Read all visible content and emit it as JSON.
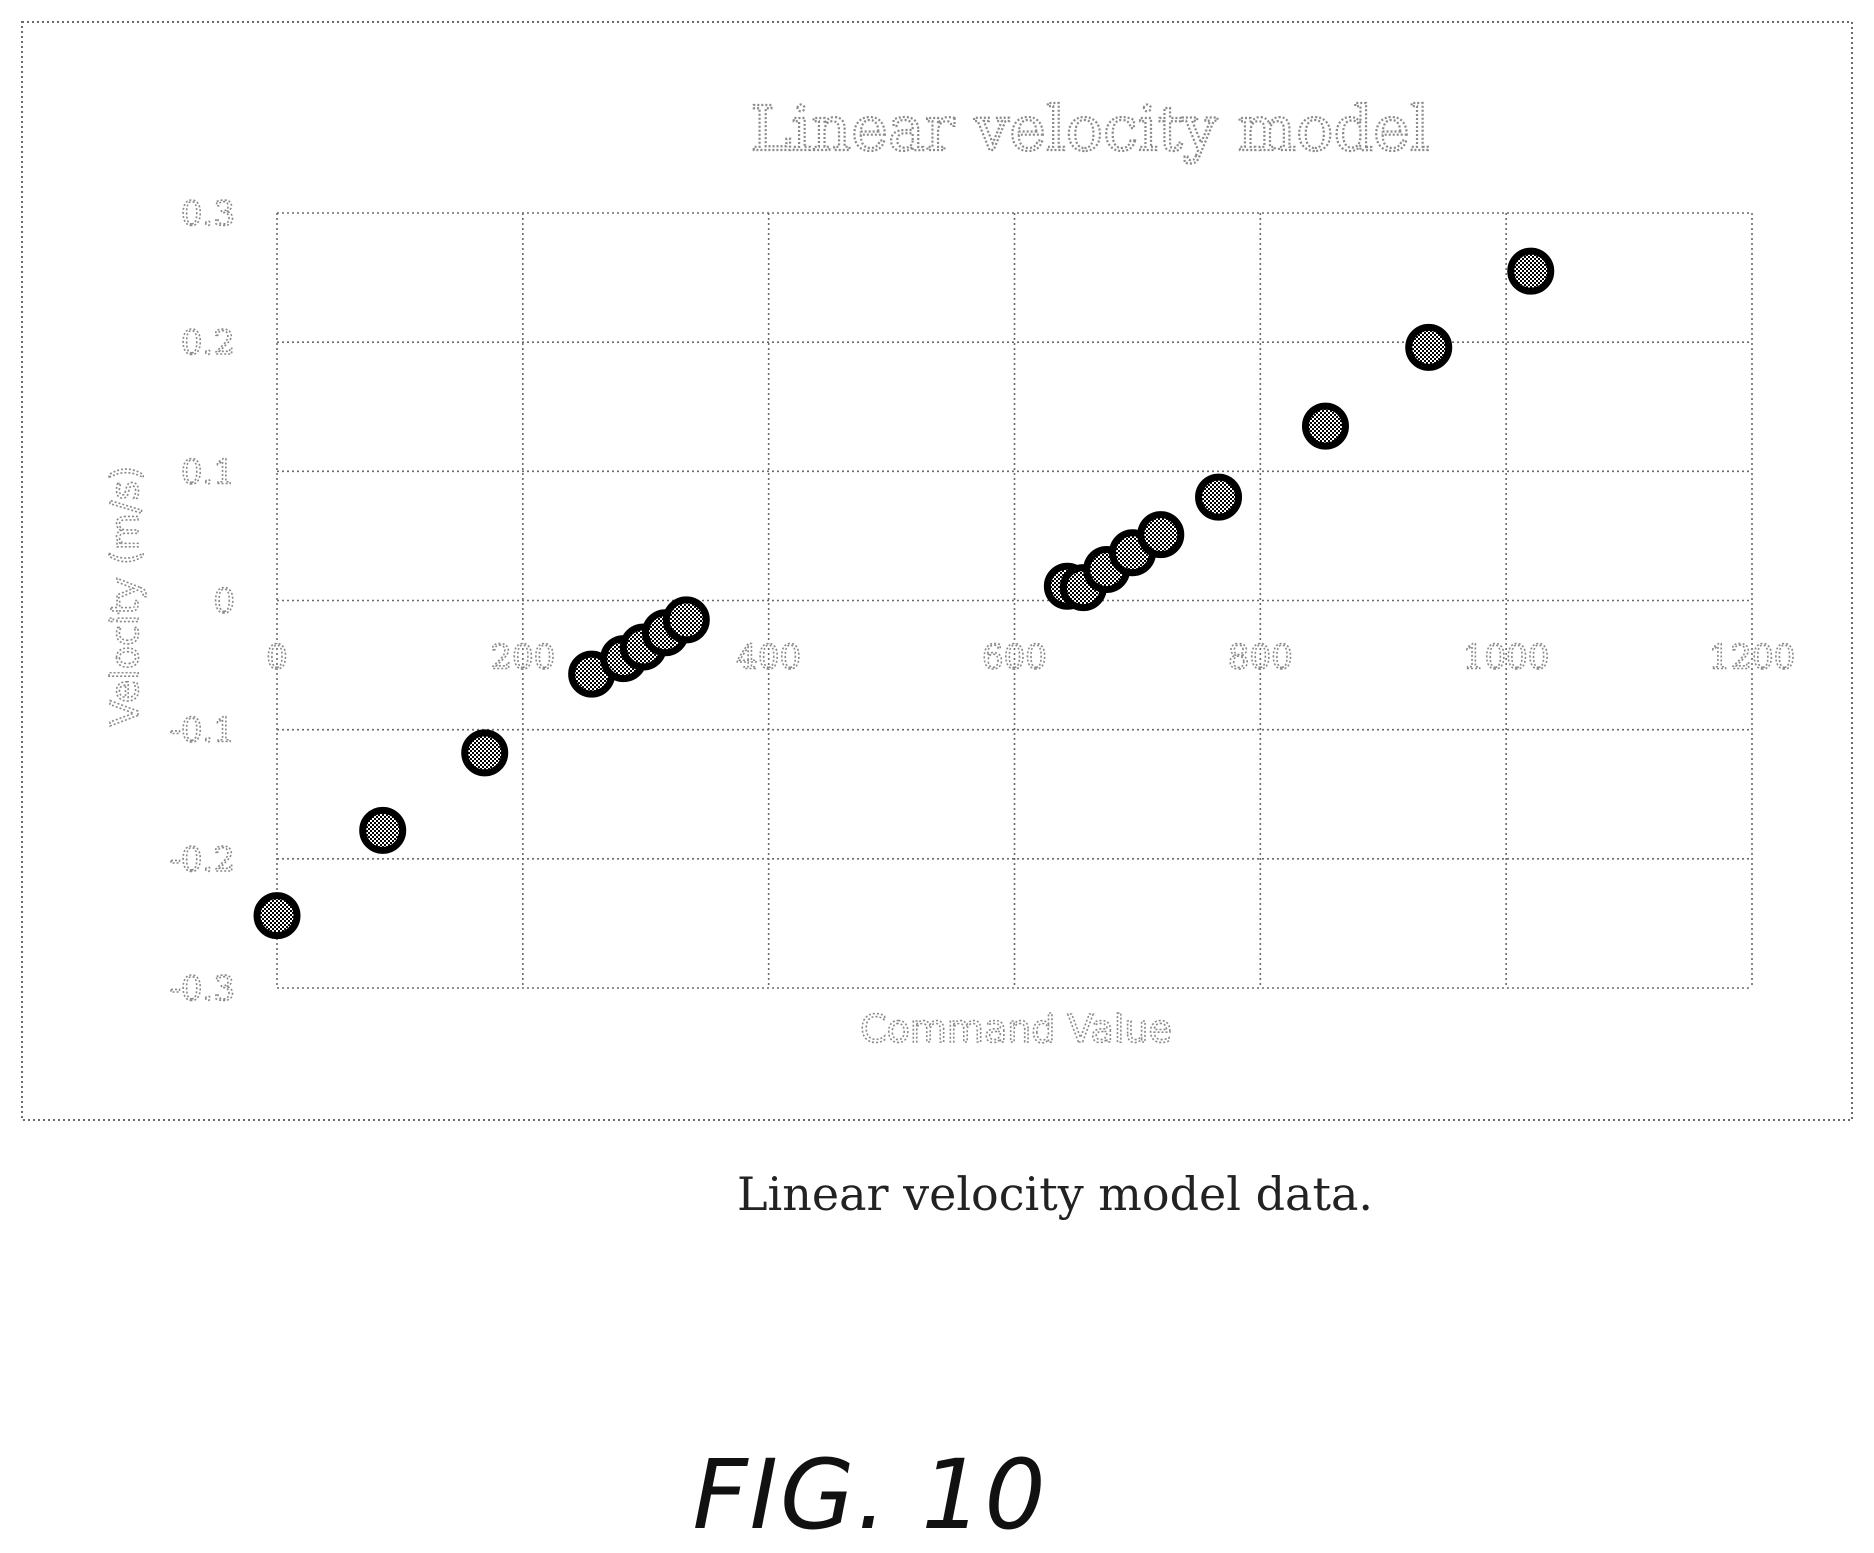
{
  "figure": {
    "caption": "Linear velocity model data.",
    "label": "FIG. 10"
  },
  "chart_data": {
    "type": "scatter",
    "title": "Linear velocity model",
    "xlabel": "Command Value",
    "ylabel": "Velocity (m/s)",
    "xlim": [
      0,
      1200
    ],
    "ylim": [
      -0.3,
      0.3
    ],
    "xticks": [
      "0",
      "200",
      "400",
      "600",
      "800",
      "1000",
      "1200"
    ],
    "yticks": [
      "0.3",
      "0.2",
      "0.1",
      "0",
      "-0.1",
      "-0.2",
      "-0.3"
    ],
    "grid": true,
    "legend": "none",
    "marker_color": "#000000",
    "points": [
      {
        "x": 0,
        "y": -0.244
      },
      {
        "x": 86,
        "y": -0.178
      },
      {
        "x": 169,
        "y": -0.118
      },
      {
        "x": 256,
        "y": -0.057
      },
      {
        "x": 282,
        "y": -0.045
      },
      {
        "x": 298,
        "y": -0.036
      },
      {
        "x": 316,
        "y": -0.025
      },
      {
        "x": 333,
        "y": -0.015
      },
      {
        "x": 643,
        "y": 0.011
      },
      {
        "x": 656,
        "y": 0.01
      },
      {
        "x": 675,
        "y": 0.024
      },
      {
        "x": 696,
        "y": 0.037
      },
      {
        "x": 719,
        "y": 0.051
      },
      {
        "x": 766,
        "y": 0.08
      },
      {
        "x": 853,
        "y": 0.135
      },
      {
        "x": 937,
        "y": 0.196
      },
      {
        "x": 1020,
        "y": 0.255
      }
    ]
  }
}
